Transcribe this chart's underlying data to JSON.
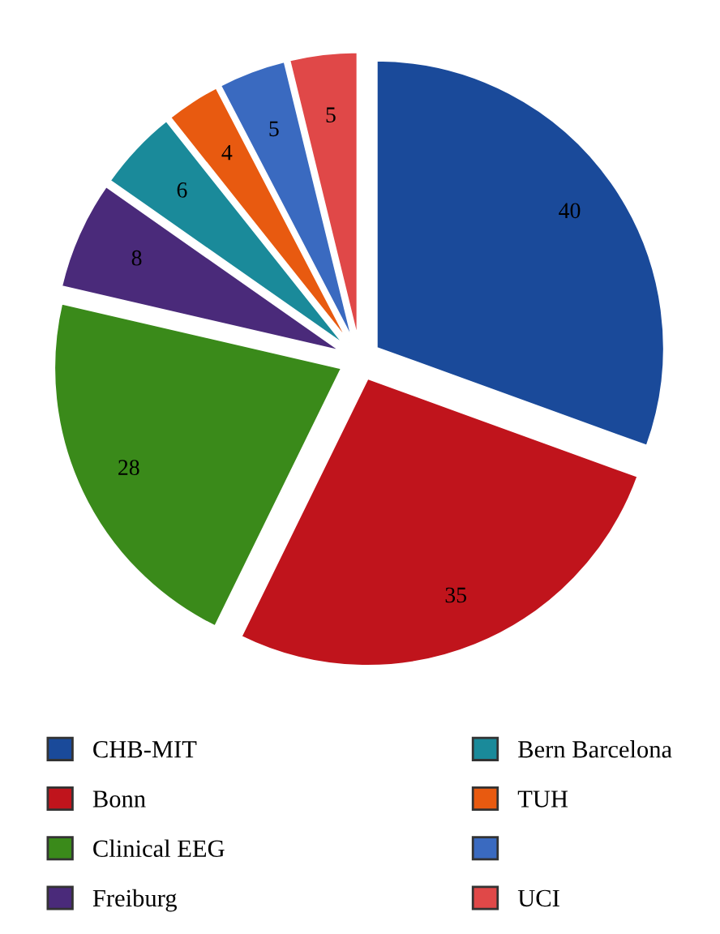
{
  "chart_data": {
    "type": "pie",
    "categories": [
      "CHB-MIT",
      "Bonn",
      "Clinical EEG",
      "Freiburg",
      "Bern Barcelona",
      "TUH",
      null,
      "UCI"
    ],
    "values": [
      40,
      35,
      28,
      8,
      6,
      4,
      5,
      5
    ],
    "colors": [
      "#1a4a9a",
      "#c0141c",
      "#3a8a1a",
      "#4a2a7a",
      "#1a8a9a",
      "#e85a10",
      "#3a6ac0",
      "#e04848"
    ],
    "data_labels": true,
    "legend": "bottom"
  }
}
